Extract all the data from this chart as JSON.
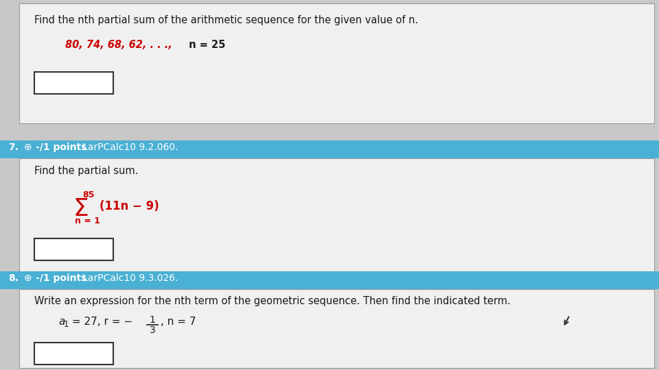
{
  "bg_color": "#c8c8c8",
  "white_bg": "#f0f0f0",
  "header_bg": "#4ab0d4",
  "white_box_bg": "#f0f0f0",
  "body_text_color": "#1a1a1a",
  "red_text_color": "#cc0000",
  "header_text_white": "#ffffff",
  "answer_box_border": "#555555",
  "section_top_text": "Find the nth partial sum of the arithmetic sequence for the given value of n.",
  "section_top_seq": "80, 74, 68, 62, . . .,",
  "section_top_n": " n = 25",
  "header7_num": "7.",
  "header7_points": "-/1 points",
  "header7_ref": "LarPCalc10 9.2.060.",
  "q7_text": "Find the partial sum.",
  "q7_upper": "85",
  "q7_sigma": "Σ",
  "q7_expr": "(11n − 9)",
  "q7_lower": "n = 1",
  "header8_num": "8.",
  "header8_points": "-/1 points",
  "header8_ref": "LarPCalc10 9.3.026.",
  "q8_text": "Write an expression for the nth term of the geometric sequence. Then find the indicated term.",
  "q8_a1_text": "a",
  "q8_a1_sub": "1",
  "q8_a1_rest": " = 27, r = −",
  "q8_frac_num": "1",
  "q8_frac_den": "3",
  "q8_n_text": ", n = 7"
}
